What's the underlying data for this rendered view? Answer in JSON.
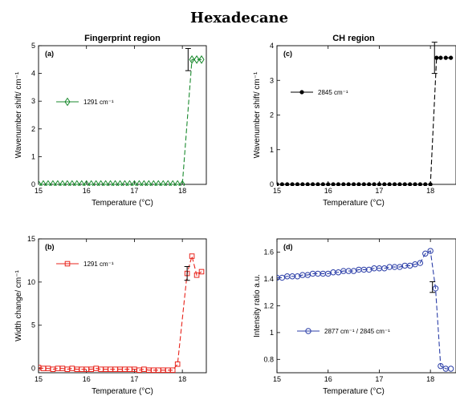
{
  "figure": {
    "title": "Hexadecane"
  },
  "chart_data": [
    {
      "id": "a",
      "type": "line",
      "title": "Fingerprint region",
      "annotation": "(a)",
      "xlabel": "Temperature (°C)",
      "ylabel": "Wavenumber shift/ cm⁻¹",
      "xlim": [
        15,
        18.5
      ],
      "ylim": [
        0,
        5
      ],
      "xticks": [
        15,
        16,
        17,
        18
      ],
      "yticks": [
        0,
        1,
        2,
        3,
        4,
        5
      ],
      "legend_placement": "upper-left",
      "series": [
        {
          "name": "1291 cm⁻¹",
          "color": "#1a8a2e",
          "marker": "diamond",
          "x": [
            15.0,
            15.1,
            15.2,
            15.3,
            15.4,
            15.5,
            15.6,
            15.7,
            15.8,
            15.9,
            16.0,
            16.1,
            16.2,
            16.3,
            16.4,
            16.5,
            16.6,
            16.7,
            16.8,
            16.9,
            17.0,
            17.1,
            17.2,
            17.3,
            17.4,
            17.5,
            17.6,
            17.7,
            17.8,
            17.9,
            18.0,
            18.2,
            18.3,
            18.4
          ],
          "y": [
            0,
            0,
            0,
            0,
            0,
            0,
            0,
            0,
            0,
            0,
            0,
            0,
            0,
            0,
            0,
            0,
            0,
            0,
            0,
            0,
            0,
            0,
            0,
            0,
            0,
            0,
            0,
            0,
            0,
            0,
            0,
            4.5,
            4.5,
            4.5
          ]
        }
      ],
      "errorbar": {
        "x": 18.12,
        "y": 4.5,
        "err": 0.4
      }
    },
    {
      "id": "c",
      "type": "line",
      "title": "CH region",
      "annotation": "(c)",
      "xlabel": "Temperature (°C)",
      "ylabel": "Wavenumber shift/ cm⁻¹",
      "xlim": [
        15,
        18.5
      ],
      "ylim": [
        0,
        4
      ],
      "xticks": [
        15,
        16,
        17,
        18
      ],
      "yticks": [
        0,
        1,
        2,
        3,
        4
      ],
      "legend_placement": "upper-left",
      "series": [
        {
          "name": "2845 cm⁻¹",
          "color": "#000000",
          "marker": "dot",
          "x": [
            15.0,
            15.1,
            15.2,
            15.3,
            15.4,
            15.5,
            15.6,
            15.7,
            15.8,
            15.9,
            16.0,
            16.1,
            16.2,
            16.3,
            16.4,
            16.5,
            16.6,
            16.7,
            16.8,
            16.9,
            17.0,
            17.1,
            17.2,
            17.3,
            17.4,
            17.5,
            17.6,
            17.7,
            17.8,
            17.9,
            18.0,
            18.12,
            18.2,
            18.3,
            18.4
          ],
          "y": [
            0,
            0,
            0,
            0,
            0,
            0,
            0,
            0,
            0,
            0,
            0,
            0,
            0,
            0,
            0,
            0,
            0,
            0,
            0,
            0,
            0,
            0,
            0,
            0,
            0,
            0,
            0,
            0,
            0,
            0,
            0,
            3.65,
            3.65,
            3.65,
            3.65
          ]
        }
      ],
      "errorbar": {
        "x": 18.08,
        "y": 3.65,
        "err": 0.45
      }
    },
    {
      "id": "b",
      "type": "line",
      "title": "",
      "annotation": "(b)",
      "xlabel": "Temperature (°C)",
      "ylabel": "Width change/ cm⁻¹",
      "xlim": [
        15,
        18.5
      ],
      "ylim": [
        -0.5,
        15
      ],
      "xticks": [
        15,
        16,
        17,
        18
      ],
      "yticks": [
        0,
        5,
        10,
        15
      ],
      "legend_placement": "upper-left",
      "series": [
        {
          "name": "1291 cm⁻¹",
          "color": "#e8241c",
          "marker": "square",
          "x": [
            15.0,
            15.1,
            15.2,
            15.3,
            15.4,
            15.5,
            15.6,
            15.7,
            15.8,
            15.9,
            16.0,
            16.1,
            16.2,
            16.3,
            16.4,
            16.5,
            16.6,
            16.7,
            16.8,
            16.9,
            17.0,
            17.1,
            17.2,
            17.3,
            17.4,
            17.5,
            17.6,
            17.7,
            17.8,
            17.9,
            18.1,
            18.2,
            18.3,
            18.4
          ],
          "y": [
            0.1,
            0.0,
            0.0,
            -0.1,
            0.0,
            0.0,
            -0.1,
            0.0,
            -0.1,
            -0.1,
            -0.1,
            -0.1,
            0.0,
            -0.1,
            -0.1,
            -0.1,
            -0.1,
            -0.1,
            -0.1,
            -0.1,
            -0.1,
            -0.2,
            -0.1,
            -0.2,
            -0.2,
            -0.2,
            -0.2,
            -0.2,
            -0.2,
            0.5,
            11.0,
            13.0,
            10.8,
            11.2
          ]
        }
      ],
      "errorbar": {
        "x": 18.1,
        "y": 11.0,
        "err": 0.8
      }
    },
    {
      "id": "d",
      "type": "line",
      "title": "",
      "annotation": "(d)",
      "xlabel": "Temperature (°C)",
      "ylabel": "Intensity ratio a.u.",
      "xlim": [
        15,
        18.5
      ],
      "ylim": [
        0.7,
        1.7
      ],
      "xticks": [
        15,
        16,
        17,
        18
      ],
      "yticks": [
        0.8,
        1,
        1.2,
        1.4,
        1.6
      ],
      "legend_placement": "lower-left",
      "series": [
        {
          "name": "2877 cm⁻¹ / 2845 cm⁻¹",
          "color": "#2c3fa8",
          "marker": "circle",
          "x": [
            15.0,
            15.1,
            15.2,
            15.3,
            15.4,
            15.5,
            15.6,
            15.7,
            15.8,
            15.9,
            16.0,
            16.1,
            16.2,
            16.3,
            16.4,
            16.5,
            16.6,
            16.7,
            16.8,
            16.9,
            17.0,
            17.1,
            17.2,
            17.3,
            17.4,
            17.5,
            17.6,
            17.7,
            17.8,
            17.9,
            18.0,
            18.1,
            18.2,
            18.3,
            18.4
          ],
          "y": [
            1.41,
            1.41,
            1.42,
            1.42,
            1.42,
            1.43,
            1.43,
            1.44,
            1.44,
            1.44,
            1.44,
            1.45,
            1.45,
            1.46,
            1.46,
            1.46,
            1.47,
            1.47,
            1.47,
            1.48,
            1.48,
            1.48,
            1.49,
            1.49,
            1.49,
            1.5,
            1.5,
            1.51,
            1.52,
            1.59,
            1.61,
            1.33,
            0.75,
            0.73,
            0.73
          ]
        }
      ],
      "errorbar": {
        "x": 18.04,
        "y": 1.34,
        "err": 0.04
      }
    }
  ]
}
